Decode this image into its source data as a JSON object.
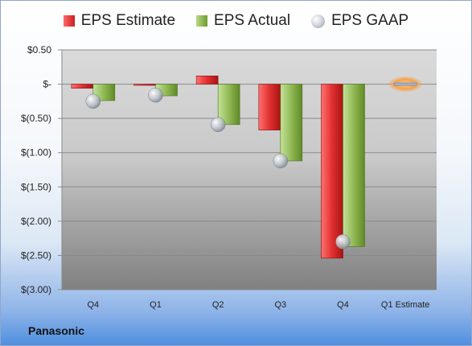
{
  "company": "Panasonic",
  "legend": [
    {
      "label": "EPS Estimate",
      "icon": "red-bar-swatch"
    },
    {
      "label": "EPS Actual",
      "icon": "green-bar-swatch"
    },
    {
      "label": "EPS GAAP",
      "icon": "gray-sphere-swatch"
    }
  ],
  "colors": {
    "estimate": "#d42b2b",
    "actual": "#8bb34e",
    "gaap": "#b8bec8",
    "highlight": "#f4a04a"
  },
  "chart_data": {
    "type": "bar",
    "categories": [
      "Q4",
      "Q1",
      "Q2",
      "Q3",
      "Q4",
      "Q1 Estimate"
    ],
    "series": [
      {
        "name": "EPS Estimate",
        "values": [
          -0.06,
          -0.01,
          0.12,
          -0.67,
          -2.54,
          null
        ]
      },
      {
        "name": "EPS Actual",
        "values": [
          -0.24,
          -0.17,
          -0.59,
          -1.12,
          -2.37,
          -0.01
        ]
      },
      {
        "name": "EPS GAAP",
        "values": [
          -0.25,
          -0.16,
          -0.59,
          -1.12,
          -2.3,
          null
        ]
      }
    ],
    "ylim": [
      -3.0,
      0.5
    ],
    "yticks": [
      0.5,
      0,
      -0.5,
      -1.0,
      -1.5,
      -2.0,
      -2.5,
      -3.0
    ],
    "ytick_labels": [
      "$0.50",
      "$-",
      "$(0.50)",
      "$(1.00)",
      "$(1.50)",
      "$(2.00)",
      "$(2.50)",
      "$(3.00)"
    ],
    "grid": true,
    "legend_position": "top"
  }
}
